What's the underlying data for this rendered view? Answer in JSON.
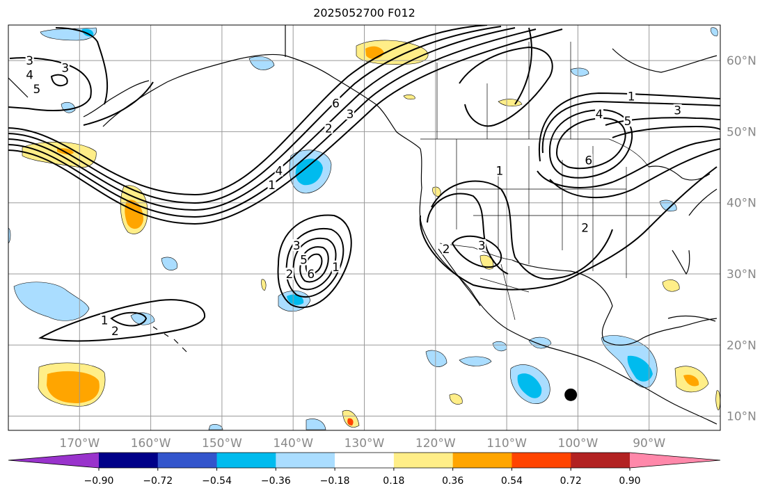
{
  "title": "2025052700 F012",
  "map": {
    "lon_range": [
      -180,
      -80
    ],
    "lat_range": [
      8,
      65
    ],
    "lon_labels": [
      {
        "lon": -170,
        "text": "170°W"
      },
      {
        "lon": -160,
        "text": "160°W"
      },
      {
        "lon": -150,
        "text": "150°W"
      },
      {
        "lon": -140,
        "text": "140°W"
      },
      {
        "lon": -130,
        "text": "130°W"
      },
      {
        "lon": -120,
        "text": "120°W"
      },
      {
        "lon": -110,
        "text": "110°W"
      },
      {
        "lon": -100,
        "text": "100°W"
      },
      {
        "lon": -90,
        "text": "90°W"
      }
    ],
    "lat_labels": [
      {
        "lat": 60,
        "text": "60°N"
      },
      {
        "lat": 50,
        "text": "50°N"
      },
      {
        "lat": 40,
        "text": "40°N"
      },
      {
        "lat": 30,
        "text": "30°N"
      },
      {
        "lat": 20,
        "text": "20°N"
      },
      {
        "lat": 10,
        "text": "10°N"
      }
    ],
    "marker": {
      "lon": -101,
      "lat": 13,
      "color": "#000000"
    }
  },
  "colorbar": {
    "ticks": [
      "−0.90",
      "−0.72",
      "−0.54",
      "−0.36",
      "−0.18",
      "0.18",
      "0.36",
      "0.54",
      "0.72",
      "0.90"
    ],
    "colors": [
      "#9933cc",
      "#000088",
      "#3355cc",
      "#00bbee",
      "#aaddff",
      "#ffffff",
      "#ffee88",
      "#ffa500",
      "#ff4400",
      "#b22222",
      "#ff88aa"
    ]
  },
  "contour_labels": [
    {
      "text": "3",
      "lon": -177,
      "lat": 60
    },
    {
      "text": "3",
      "lon": -172,
      "lat": 59
    },
    {
      "text": "4",
      "lon": -177,
      "lat": 58
    },
    {
      "text": "5",
      "lon": -176,
      "lat": 56
    },
    {
      "text": "6",
      "lon": -134,
      "lat": 54
    },
    {
      "text": "3",
      "lon": -132,
      "lat": 52.5
    },
    {
      "text": "2",
      "lon": -135,
      "lat": 50.5
    },
    {
      "text": "4",
      "lon": -142,
      "lat": 44.5
    },
    {
      "text": "1",
      "lon": -143,
      "lat": 42.5
    },
    {
      "text": "3",
      "lon": -139.5,
      "lat": 34
    },
    {
      "text": "5",
      "lon": -138.5,
      "lat": 32
    },
    {
      "text": "6",
      "lon": -137.5,
      "lat": 30
    },
    {
      "text": "2",
      "lon": -140.5,
      "lat": 30
    },
    {
      "text": "1",
      "lon": -134,
      "lat": 31
    },
    {
      "text": "1",
      "lon": -166.5,
      "lat": 23.5
    },
    {
      "text": "2",
      "lon": -165,
      "lat": 22
    },
    {
      "text": "1",
      "lon": -111,
      "lat": 44.5
    },
    {
      "text": "2",
      "lon": -118.5,
      "lat": 33.5
    },
    {
      "text": "3",
      "lon": -113.5,
      "lat": 34
    },
    {
      "text": "1",
      "lon": -92.5,
      "lat": 55
    },
    {
      "text": "3",
      "lon": -86,
      "lat": 53
    },
    {
      "text": "4",
      "lon": -97,
      "lat": 52.5
    },
    {
      "text": "5",
      "lon": -93,
      "lat": 51.5
    },
    {
      "text": "6",
      "lon": -98.5,
      "lat": 46
    },
    {
      "text": "2",
      "lon": -99,
      "lat": 36.5
    }
  ]
}
